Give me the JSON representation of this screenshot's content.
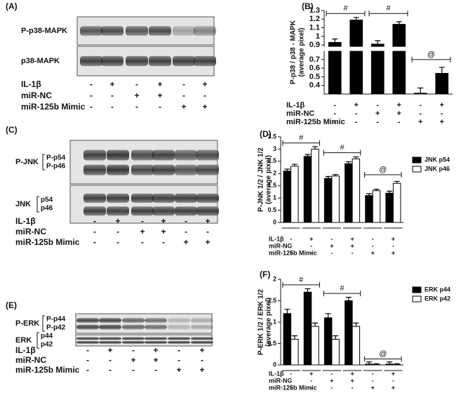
{
  "blots": [
    {
      "label": "(A)",
      "bands": [
        {
          "name": "P-p38-MAPK"
        },
        {
          "name": "p38-MAPK"
        }
      ],
      "treatments": [
        {
          "label": "IL-1β",
          "signs": [
            "-",
            "+",
            "-",
            "+",
            "-",
            "+"
          ]
        },
        {
          "label": "miR-NC",
          "signs": [
            "-",
            "-",
            "+",
            "+",
            "-",
            "-"
          ]
        },
        {
          "label": "miR-125b Mimic",
          "signs": [
            "-",
            "-",
            "-",
            "-",
            "+",
            "+"
          ]
        }
      ]
    },
    {
      "label": "(C)",
      "bands": [
        {
          "name": "P-JNK",
          "sub": [
            "P-p54",
            "P-p46"
          ]
        },
        {
          "name": "JNK",
          "sub": [
            "p54",
            "p46"
          ]
        }
      ],
      "treatments": [
        {
          "label": "IL-1β",
          "signs": [
            "-",
            "+",
            "-",
            "+",
            "-",
            "+"
          ]
        },
        {
          "label": "miR-NC",
          "signs": [
            "-",
            "-",
            "+",
            "+",
            "-",
            "-"
          ]
        },
        {
          "label": "miR-125b Mimic",
          "signs": [
            "-",
            "-",
            "-",
            "-",
            "+",
            "+"
          ]
        }
      ]
    },
    {
      "label": "(E)",
      "bands": [
        {
          "name": "P-ERK",
          "sub": [
            "P-p44",
            "P-p42"
          ]
        },
        {
          "name": "ERK",
          "sub": [
            "p44",
            "p42"
          ]
        }
      ],
      "treatments": [
        {
          "label": "IL-1β",
          "signs": [
            "-",
            "+",
            "-",
            "+",
            "-",
            "+"
          ]
        },
        {
          "label": "miR-NC",
          "signs": [
            "-",
            "-",
            "+",
            "+",
            "-",
            "-"
          ]
        },
        {
          "label": "miR-125b Mimic",
          "signs": [
            "-",
            "-",
            "-",
            "-",
            "+",
            "+"
          ]
        }
      ]
    }
  ],
  "chart_data": [
    {
      "type": "bar",
      "panel": "(B)",
      "ylabel": [
        "P-p38 / p38 - MAPK",
        "(average pixel)"
      ],
      "categories": [
        null,
        null,
        null,
        null,
        null,
        null
      ],
      "series": [
        {
          "color": "#000000",
          "values": [
            0.93,
            1.19,
            0.91,
            1.14,
            0.31,
            0.54
          ],
          "errors": [
            0.04,
            0.03,
            0.04,
            0.03,
            0.06,
            0.07
          ]
        }
      ],
      "ylim": [
        0.3,
        1.3
      ],
      "ybreak": [
        0.8,
        0.88
      ],
      "yticks": [
        0.4,
        0.5,
        0.6,
        0.7,
        0.9,
        1,
        1.1,
        1.2,
        1.3
      ],
      "annotations": [
        "#",
        "#",
        "@"
      ],
      "treatments": [
        {
          "label": "IL-1β",
          "signs": [
            "-",
            "+",
            "-",
            "+",
            "-",
            "+"
          ]
        },
        {
          "label": "miR-NC",
          "signs": [
            "-",
            "-",
            "+",
            "+",
            "-",
            "-"
          ]
        },
        {
          "label": "miR-125b Mimic",
          "signs": [
            "-",
            "-",
            "-",
            "-",
            "+",
            "+"
          ]
        }
      ]
    },
    {
      "type": "bar",
      "panel": "(D)",
      "ylabel": [
        "P-JNK 1/2 / JNK 1/2",
        "(average pixel)"
      ],
      "categories": [
        null,
        null,
        null,
        null,
        null,
        null
      ],
      "series": [
        {
          "name": "JNK p54",
          "color": "#000000",
          "values": [
            2.1,
            2.7,
            1.8,
            2.4,
            1.1,
            1.2
          ],
          "errors": [
            0.08,
            0.08,
            0.08,
            0.08,
            0.08,
            0.08
          ]
        },
        {
          "name": "JNK p46",
          "color": "#ffffff",
          "values": [
            2.3,
            3.0,
            1.9,
            2.6,
            1.3,
            1.6
          ],
          "errors": [
            0.08,
            0.1,
            0.06,
            0.08,
            0.06,
            0.08
          ]
        }
      ],
      "ylim": [
        0,
        3.5
      ],
      "yticks": [
        0,
        0.5,
        1,
        1.5,
        2,
        2.5,
        3,
        3.5
      ],
      "annotations": [
        "#",
        "#",
        "@"
      ],
      "treatments": [
        {
          "label": "IL-1β",
          "signs": [
            "-",
            "+",
            "-",
            "+",
            "-",
            "+"
          ]
        },
        {
          "label": "miR-NC",
          "signs": [
            "-",
            "-",
            "+",
            "+",
            "-",
            "-"
          ]
        },
        {
          "label": "miR-125b Mimic",
          "signs": [
            "-",
            "-",
            "-",
            "-",
            "+",
            "+"
          ]
        }
      ]
    },
    {
      "type": "bar",
      "panel": "(F)",
      "ylabel": [
        "P-ERK 1/2 / ERK 1/2",
        "(average pixel)"
      ],
      "categories": [
        null,
        null,
        null,
        null,
        null,
        null
      ],
      "series": [
        {
          "name": "ERK p44",
          "color": "#000000",
          "values": [
            1.2,
            1.7,
            1.1,
            1.5,
            0.02,
            0.02
          ],
          "errors": [
            0.1,
            0.08,
            0.1,
            0.08,
            0.05,
            0.05
          ]
        },
        {
          "name": "ERK p42",
          "color": "#ffffff",
          "values": [
            0.6,
            0.9,
            0.6,
            0.9,
            0.01,
            0.01
          ],
          "errors": [
            0.08,
            0.08,
            0.08,
            0.08,
            0.02,
            0.02
          ]
        }
      ],
      "ylim": [
        0,
        2
      ],
      "yticks": [
        0,
        0.5,
        1,
        1.5,
        2
      ],
      "annotations": [
        "#",
        "#",
        "@"
      ],
      "treatments": [
        {
          "label": "IL-1β",
          "signs": [
            "-",
            "+",
            "-",
            "+",
            "-",
            "+"
          ]
        },
        {
          "label": "miR-NC",
          "signs": [
            "-",
            "-",
            "+",
            "+",
            "-",
            "-"
          ]
        },
        {
          "label": "miR-125b Mimic",
          "signs": [
            "-",
            "-",
            "-",
            "-",
            "+",
            "+"
          ]
        }
      ]
    }
  ]
}
